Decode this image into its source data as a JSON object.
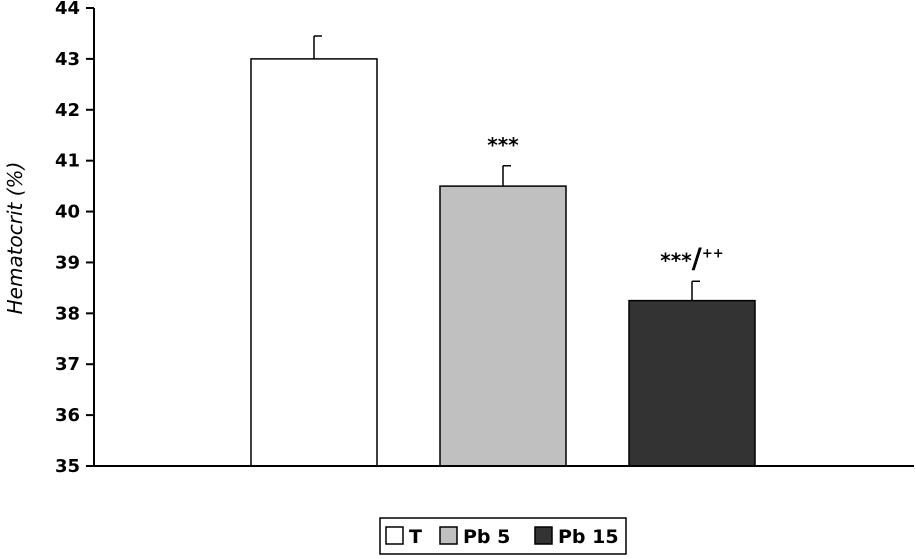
{
  "chart_data": {
    "type": "bar",
    "title": "",
    "xlabel": "",
    "ylabel": "Hematocrit (%)",
    "ylim": [
      35,
      44
    ],
    "yticks": [
      35,
      36,
      37,
      38,
      39,
      40,
      41,
      42,
      43,
      44
    ],
    "grid": false,
    "legend_position": "bottom-center",
    "series": [
      {
        "name": "T",
        "value": 43.0,
        "error": 0.45,
        "color": "#ffffff",
        "annotation": ""
      },
      {
        "name": "Pb 5",
        "value": 40.5,
        "error": 0.4,
        "color": "#c0c0c0",
        "annotation": "***"
      },
      {
        "name": "Pb 15",
        "value": 38.25,
        "error": 0.38,
        "color": "#333333",
        "annotation": "***/++"
      }
    ]
  }
}
